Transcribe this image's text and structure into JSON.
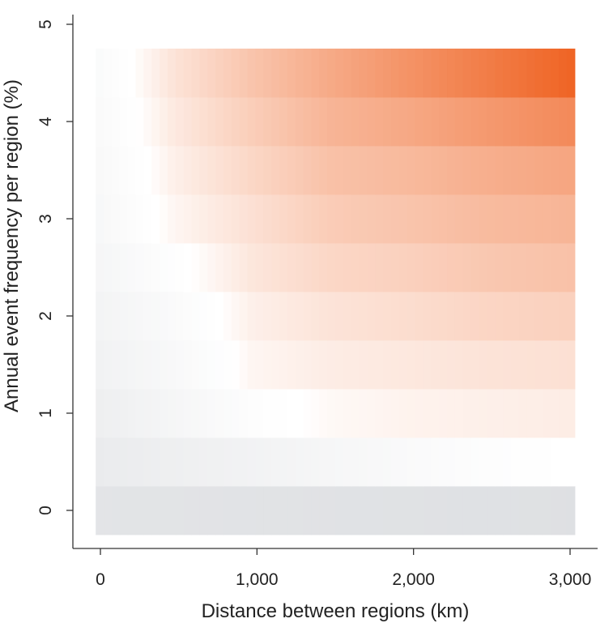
{
  "chart_data": {
    "type": "heatmap",
    "xlabel": "Distance between regions (km)",
    "ylabel": "Annual event frequency per region (%)",
    "x_ticks": [
      {
        "value": 0,
        "label": "0"
      },
      {
        "value": 1000,
        "label": "1,000"
      },
      {
        "value": 2000,
        "label": "2,000"
      },
      {
        "value": 3000,
        "label": "3,000"
      }
    ],
    "y_ticks": [
      {
        "value": 0,
        "label": "0"
      },
      {
        "value": 1,
        "label": "1"
      },
      {
        "value": 2,
        "label": "2"
      },
      {
        "value": 3,
        "label": "3"
      },
      {
        "value": 4,
        "label": "4"
      },
      {
        "value": 5,
        "label": "5"
      }
    ],
    "xlim": [
      -180,
      3200
    ],
    "ylim": [
      -0.4,
      5.1
    ],
    "x_range": [
      -30,
      3030
    ],
    "y_rows": [
      0,
      0.5,
      1,
      1.5,
      2,
      2.5,
      3,
      3.5,
      4,
      4.5
    ],
    "y_row_height": 0.5,
    "grid": false,
    "colormap": {
      "low": "#dcdee1",
      "mid": "#ffffff",
      "high": "#ef6424"
    },
    "value_range": [
      -1,
      1
    ],
    "values": [
      [
        -0.81,
        -0.83,
        -0.85,
        -0.87,
        -0.89,
        -0.91,
        -0.93
      ],
      [
        -0.6,
        -0.48,
        -0.38,
        -0.26,
        -0.16,
        -0.06,
        0.0
      ],
      [
        -0.5,
        -0.28,
        -0.06,
        0.04,
        0.08,
        0.1,
        0.12
      ],
      [
        -0.4,
        -0.2,
        0.06,
        0.12,
        0.15,
        0.18,
        0.2
      ],
      [
        -0.35,
        -0.14,
        0.1,
        0.18,
        0.22,
        0.27,
        0.3
      ],
      [
        -0.28,
        -0.04,
        0.16,
        0.26,
        0.3,
        0.36,
        0.4
      ],
      [
        -0.23,
        0.06,
        0.2,
        0.33,
        0.38,
        0.44,
        0.48
      ],
      [
        -0.2,
        0.1,
        0.26,
        0.4,
        0.45,
        0.52,
        0.58
      ],
      [
        -0.17,
        0.14,
        0.32,
        0.48,
        0.56,
        0.66,
        0.76
      ],
      [
        -0.15,
        0.18,
        0.38,
        0.55,
        0.7,
        0.84,
        1.0
      ]
    ],
    "x_anchors": [
      -30,
      470,
      970,
      1470,
      1970,
      2470,
      3030
    ]
  }
}
